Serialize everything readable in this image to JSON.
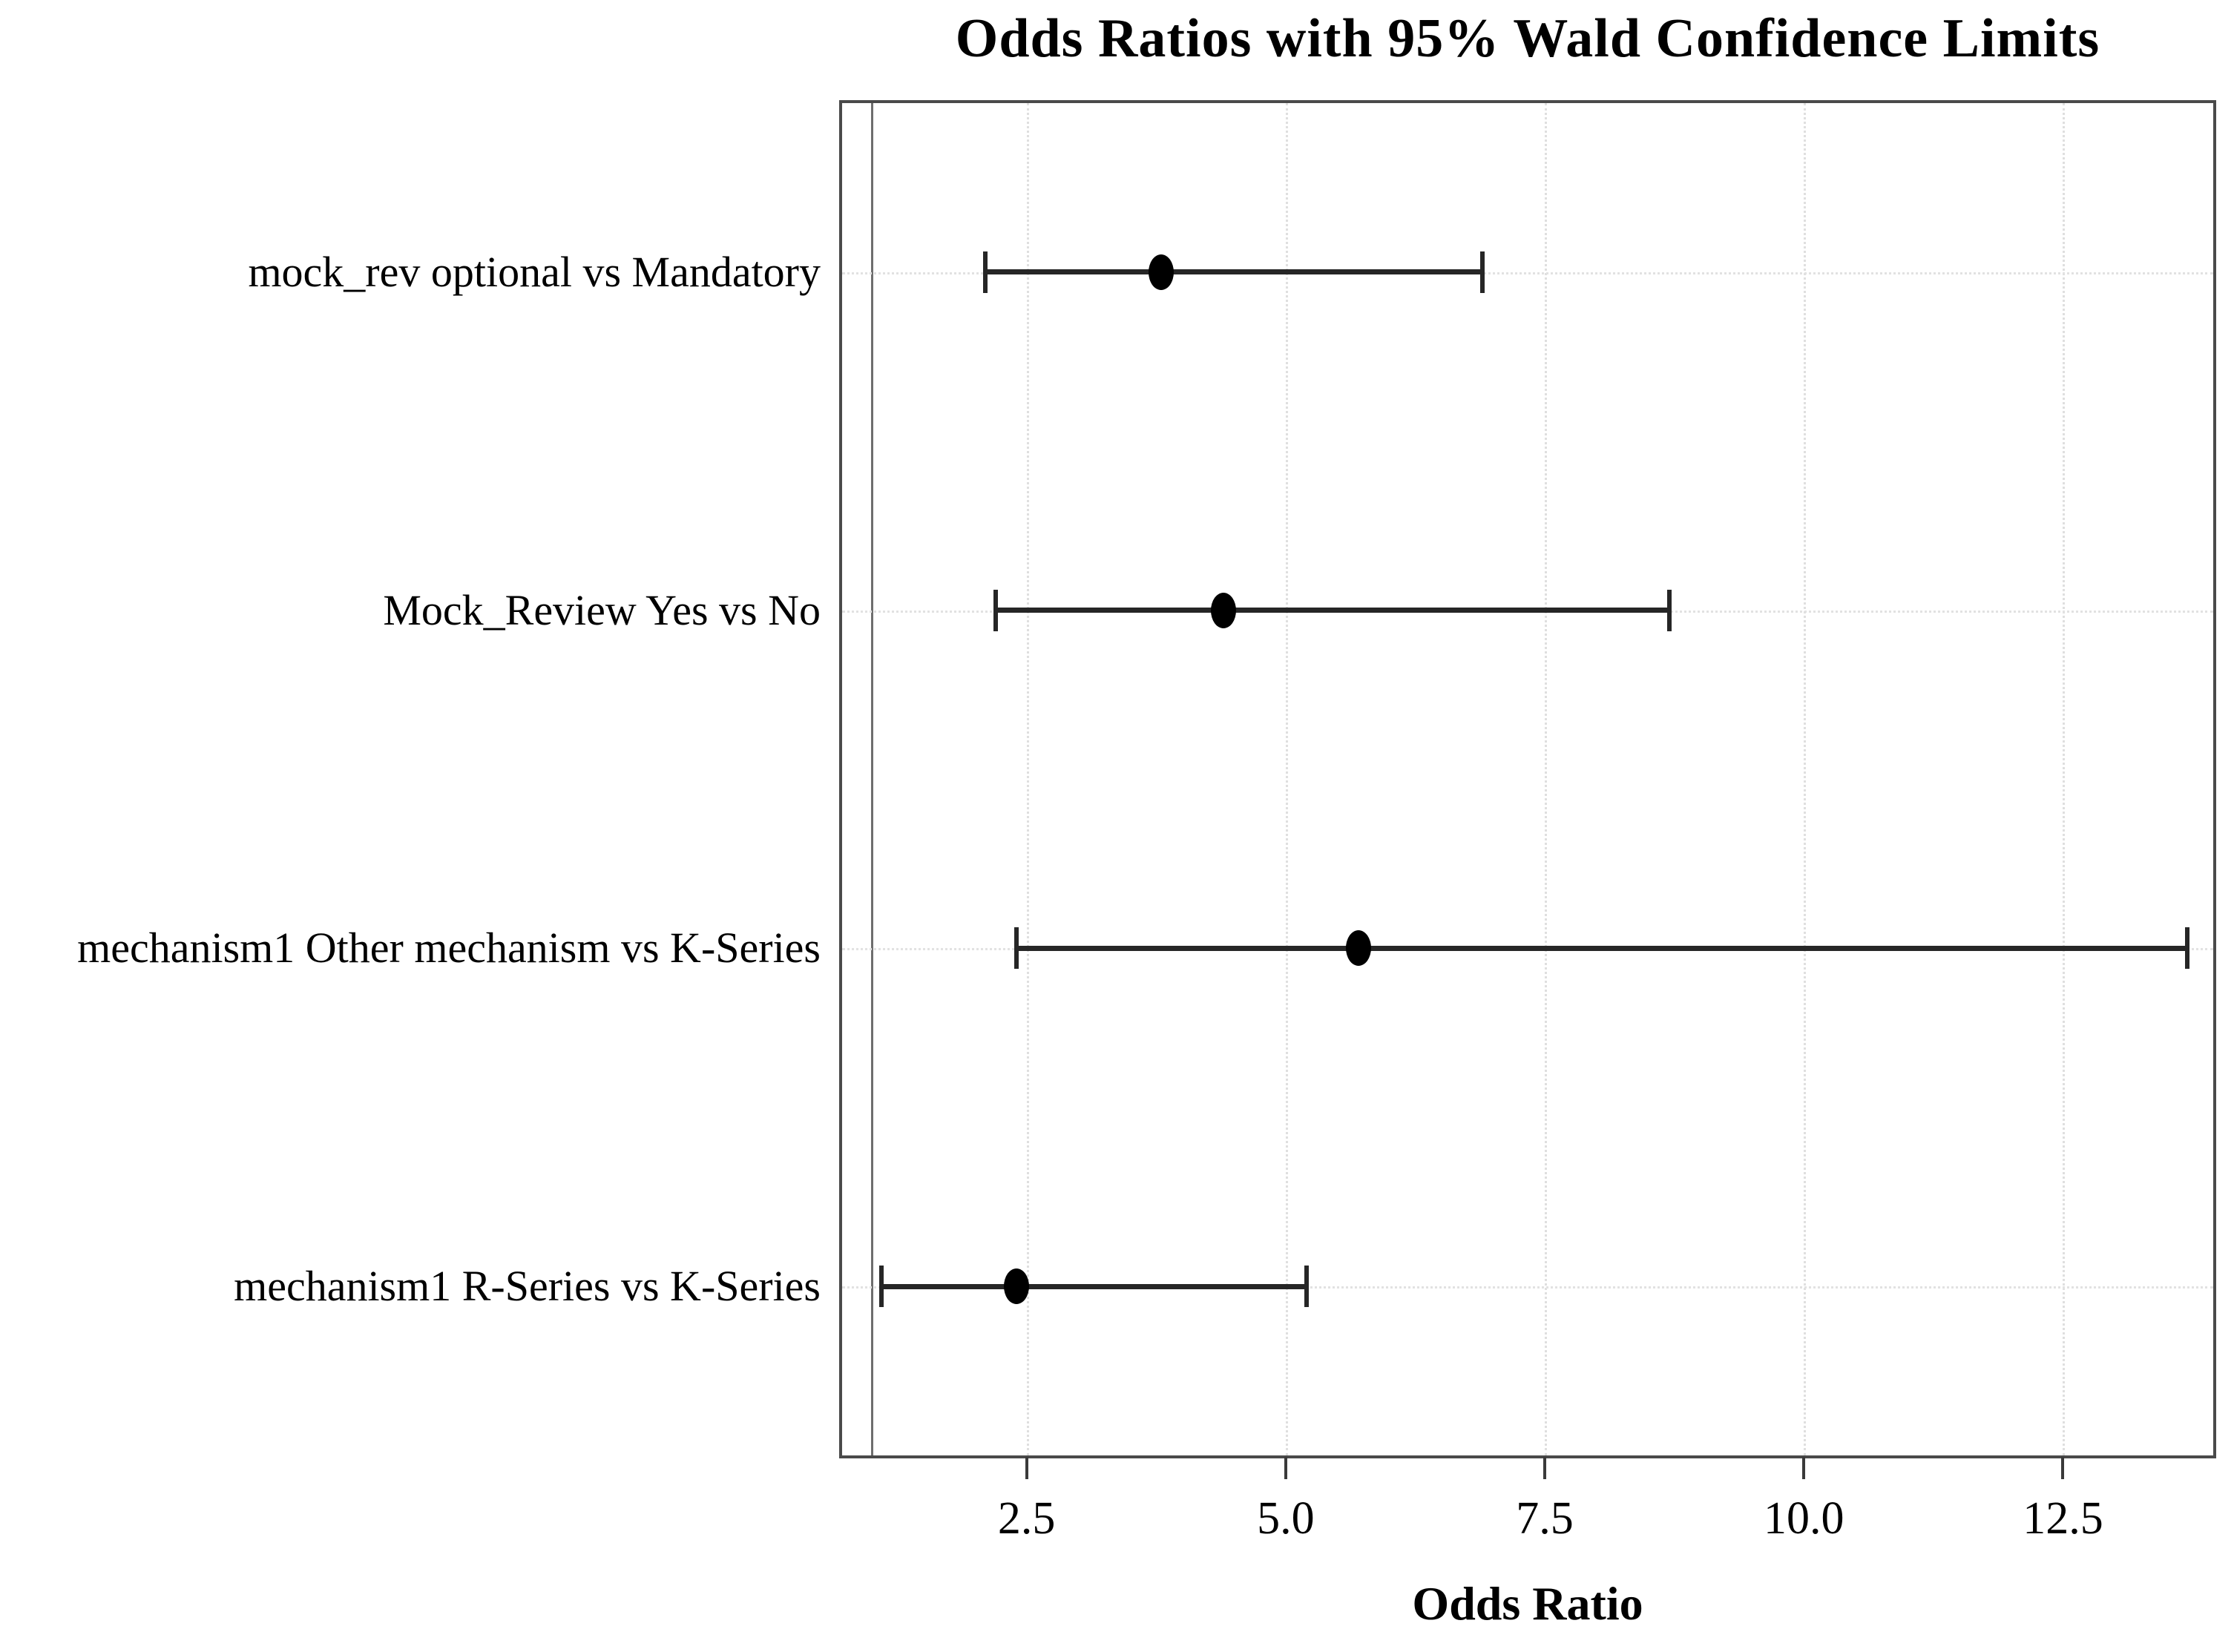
{
  "chart_data": {
    "type": "scatter",
    "subtype": "forest_plot_odds_ratio_intervals",
    "title": "Odds Ratios with 95% Wald Confidence Limits",
    "xlabel": "Odds Ratio",
    "xlim": [
      0.72,
      13.95
    ],
    "x_ticks": [
      {
        "value": 2.5,
        "label": "2.5"
      },
      {
        "value": 5.0,
        "label": "5.0"
      },
      {
        "value": 7.5,
        "label": "7.5"
      },
      {
        "value": 10.0,
        "label": "10.0"
      },
      {
        "value": 12.5,
        "label": "12.5"
      }
    ],
    "reference_line_x": 1.0,
    "rows": [
      {
        "label": "mock_rev optional vs Mandatory",
        "estimate": 3.8,
        "lower": 2.1,
        "upper": 6.9
      },
      {
        "label": "Mock_Review Yes vs No",
        "estimate": 4.4,
        "lower": 2.2,
        "upper": 8.7
      },
      {
        "label": "mechanism1 Other mechanism vs K-Series",
        "estimate": 5.7,
        "lower": 2.4,
        "upper": 13.7
      },
      {
        "label": "mechanism1 R-Series vs K-Series",
        "estimate": 2.4,
        "lower": 1.1,
        "upper": 5.2
      }
    ],
    "grid": {
      "vertical_at_ticks": true,
      "horizontal_at_row_centers": true,
      "style": "dotted"
    },
    "legend_position": "none",
    "colors": {
      "marker": "#000000",
      "interval_line": "#262626",
      "frame": "#4a4a4a",
      "grid_line": "#e0e0e0",
      "reference_line": "#6e6e6e",
      "background": "#ffffff",
      "text": "#000000"
    }
  }
}
